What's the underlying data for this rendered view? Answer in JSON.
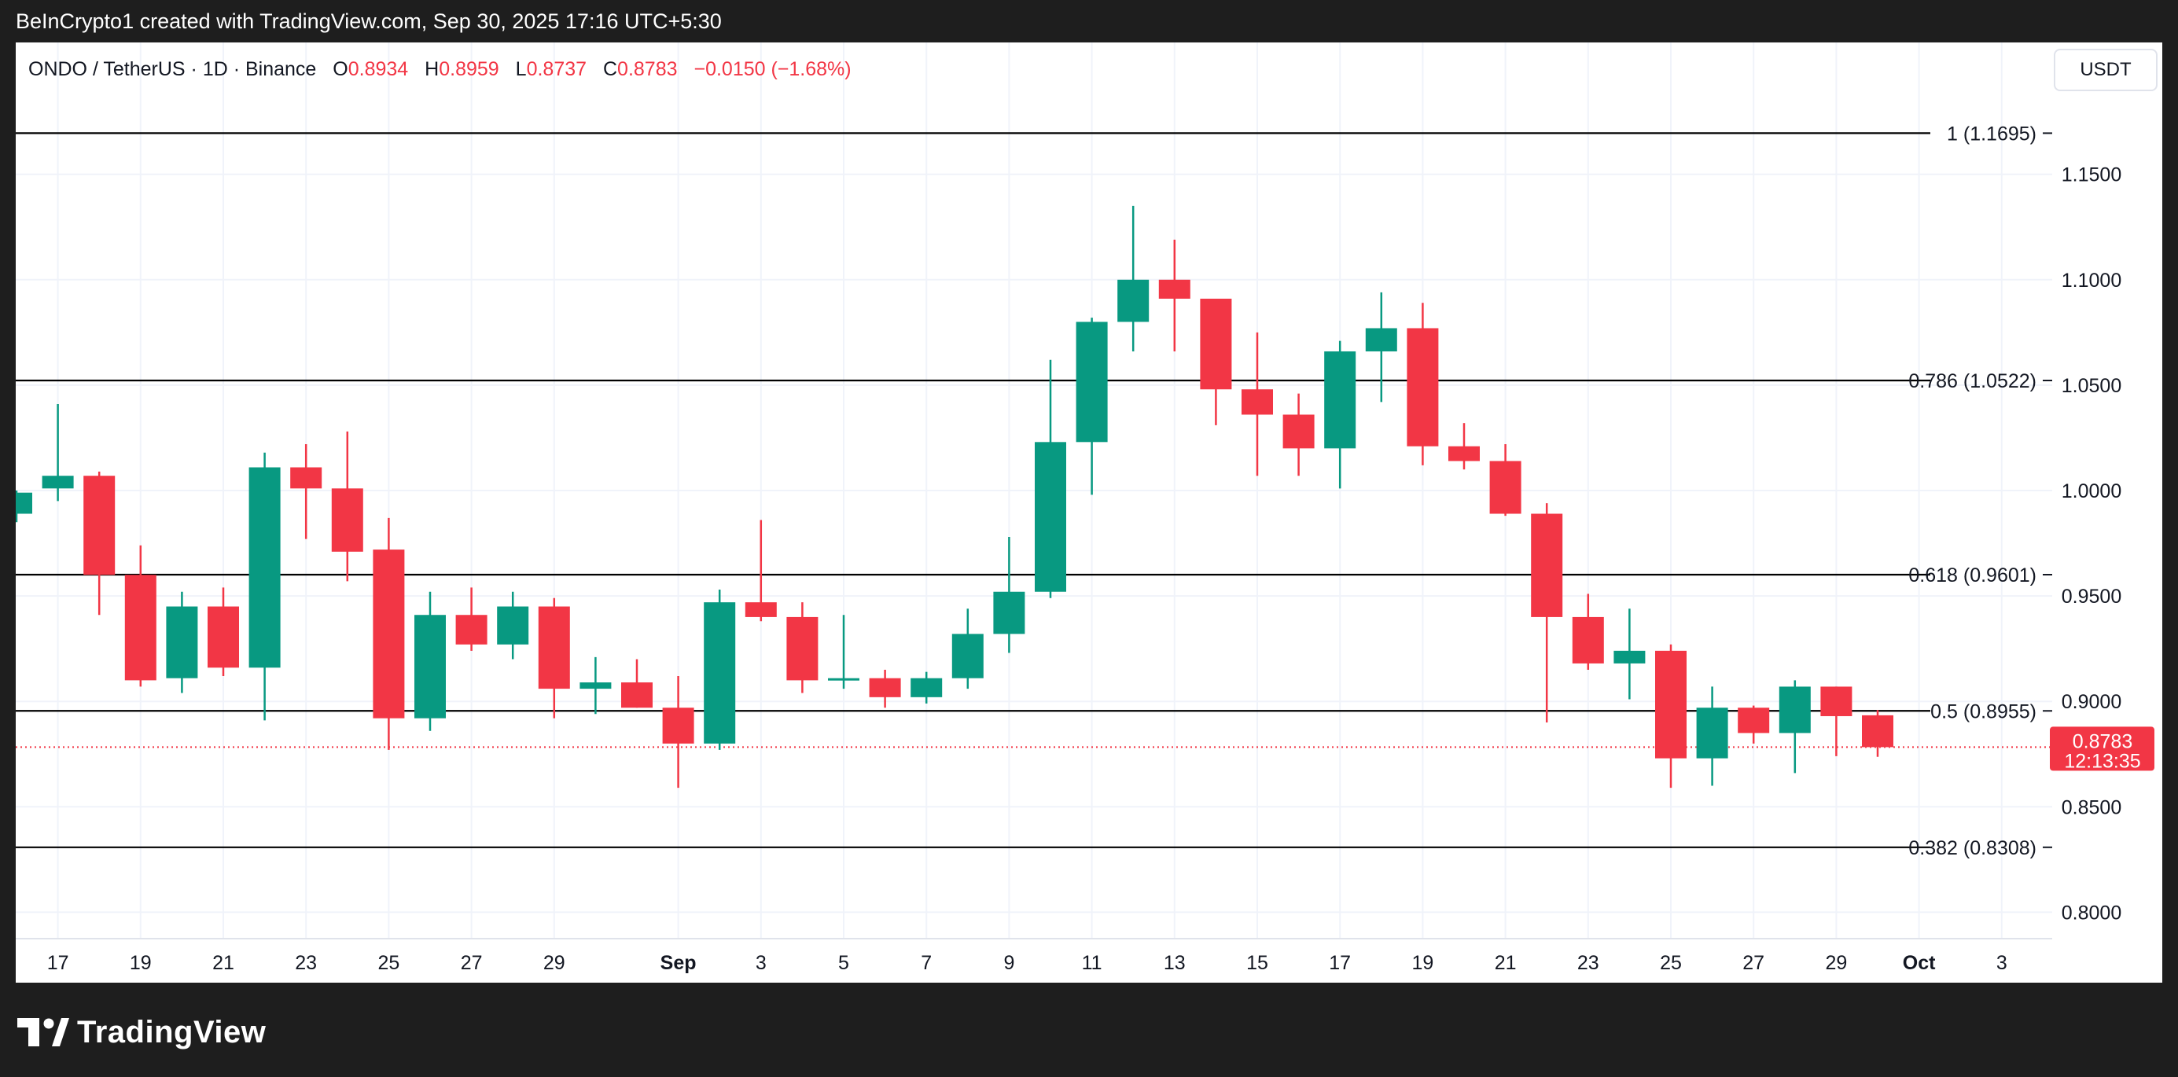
{
  "header": {
    "caption": "BeInCrypto1 created with TradingView.com, Sep 30, 2025 17:16 UTC+5:30"
  },
  "legend": {
    "symbol": "ONDO / TetherUS · 1D · Binance",
    "open_label": "O",
    "open": "0.8934",
    "high_label": "H",
    "high": "0.8959",
    "low_label": "L",
    "low": "0.8737",
    "close_label": "C",
    "close": "0.8783",
    "change": "−0.0150 (−1.68%)"
  },
  "currency": "USDT",
  "price_tag": {
    "price": "0.8783",
    "countdown": "12:13:35",
    "color": "#f23645"
  },
  "footer": {
    "brand": "TradingView"
  },
  "colors": {
    "up": "#089981",
    "down": "#f23645",
    "grid": "#f0f3fa",
    "level": "#000000"
  },
  "chart_data": {
    "type": "candlestick",
    "interval": "1D",
    "y_ticks": [
      "1.1500",
      "1.1000",
      "1.0500",
      "1.0000",
      "0.9500",
      "0.9000",
      "0.8500",
      "0.8000"
    ],
    "x_ticks": [
      "17",
      "19",
      "21",
      "23",
      "25",
      "27",
      "29",
      "Sep",
      "3",
      "5",
      "7",
      "9",
      "11",
      "13",
      "15",
      "17",
      "19",
      "21",
      "23",
      "25",
      "27",
      "29",
      "Oct",
      "3"
    ],
    "x_tick_days": [
      0,
      2,
      4,
      6,
      8,
      10,
      12,
      15,
      17,
      19,
      21,
      23,
      25,
      27,
      29,
      31,
      33,
      35,
      37,
      39,
      41,
      43,
      45,
      47
    ],
    "x_tick_bold": [
      false,
      false,
      false,
      false,
      false,
      false,
      false,
      true,
      false,
      false,
      false,
      false,
      false,
      false,
      false,
      false,
      false,
      false,
      false,
      false,
      false,
      false,
      true,
      false
    ],
    "fib_levels": [
      {
        "label": "1 (1.1695)",
        "value": 1.1695
      },
      {
        "label": "0.786 (1.0522)",
        "value": 1.0522
      },
      {
        "label": "0.618 (0.9601)",
        "value": 0.9601
      },
      {
        "label": "0.5 (0.8955)",
        "value": 0.8955
      },
      {
        "label": "0.382 (0.8308)",
        "value": 0.8308
      }
    ],
    "last_price": 0.8783,
    "candles": [
      {
        "date": "Aug 16",
        "o": 0.989,
        "h": 1.0,
        "l": 0.985,
        "c": 0.999
      },
      {
        "date": "Aug 17",
        "o": 1.001,
        "h": 1.041,
        "l": 0.995,
        "c": 1.007
      },
      {
        "date": "Aug 18",
        "o": 1.007,
        "h": 1.009,
        "l": 0.941,
        "c": 0.96
      },
      {
        "date": "Aug 19",
        "o": 0.96,
        "h": 0.974,
        "l": 0.907,
        "c": 0.91
      },
      {
        "date": "Aug 20",
        "o": 0.911,
        "h": 0.952,
        "l": 0.904,
        "c": 0.945
      },
      {
        "date": "Aug 21",
        "o": 0.945,
        "h": 0.954,
        "l": 0.912,
        "c": 0.916
      },
      {
        "date": "Aug 22",
        "o": 0.916,
        "h": 1.018,
        "l": 0.891,
        "c": 1.011
      },
      {
        "date": "Aug 23",
        "o": 1.011,
        "h": 1.022,
        "l": 0.977,
        "c": 1.001
      },
      {
        "date": "Aug 24",
        "o": 1.001,
        "h": 1.028,
        "l": 0.957,
        "c": 0.971
      },
      {
        "date": "Aug 25",
        "o": 0.972,
        "h": 0.987,
        "l": 0.877,
        "c": 0.892
      },
      {
        "date": "Aug 26",
        "o": 0.892,
        "h": 0.952,
        "l": 0.886,
        "c": 0.941
      },
      {
        "date": "Aug 27",
        "o": 0.941,
        "h": 0.954,
        "l": 0.924,
        "c": 0.927
      },
      {
        "date": "Aug 28",
        "o": 0.927,
        "h": 0.952,
        "l": 0.92,
        "c": 0.945
      },
      {
        "date": "Aug 29",
        "o": 0.945,
        "h": 0.949,
        "l": 0.892,
        "c": 0.906
      },
      {
        "date": "Aug 30",
        "o": 0.906,
        "h": 0.921,
        "l": 0.894,
        "c": 0.909
      },
      {
        "date": "Aug 31",
        "o": 0.909,
        "h": 0.92,
        "l": 0.897,
        "c": 0.897
      },
      {
        "date": "Sep 1",
        "o": 0.897,
        "h": 0.912,
        "l": 0.859,
        "c": 0.88
      },
      {
        "date": "Sep 2",
        "o": 0.88,
        "h": 0.953,
        "l": 0.877,
        "c": 0.947
      },
      {
        "date": "Sep 3",
        "o": 0.947,
        "h": 0.986,
        "l": 0.938,
        "c": 0.94
      },
      {
        "date": "Sep 4",
        "o": 0.94,
        "h": 0.947,
        "l": 0.904,
        "c": 0.91
      },
      {
        "date": "Sep 5",
        "o": 0.91,
        "h": 0.941,
        "l": 0.906,
        "c": 0.911
      },
      {
        "date": "Sep 6",
        "o": 0.911,
        "h": 0.915,
        "l": 0.897,
        "c": 0.902
      },
      {
        "date": "Sep 7",
        "o": 0.902,
        "h": 0.914,
        "l": 0.899,
        "c": 0.911
      },
      {
        "date": "Sep 8",
        "o": 0.911,
        "h": 0.944,
        "l": 0.906,
        "c": 0.932
      },
      {
        "date": "Sep 9",
        "o": 0.932,
        "h": 0.978,
        "l": 0.923,
        "c": 0.952
      },
      {
        "date": "Sep 10",
        "o": 0.952,
        "h": 1.062,
        "l": 0.949,
        "c": 1.023
      },
      {
        "date": "Sep 11",
        "o": 1.023,
        "h": 1.082,
        "l": 0.998,
        "c": 1.08
      },
      {
        "date": "Sep 12",
        "o": 1.08,
        "h": 1.135,
        "l": 1.066,
        "c": 1.1
      },
      {
        "date": "Sep 13",
        "o": 1.1,
        "h": 1.119,
        "l": 1.066,
        "c": 1.091
      },
      {
        "date": "Sep 14",
        "o": 1.091,
        "h": 1.091,
        "l": 1.031,
        "c": 1.048
      },
      {
        "date": "Sep 15",
        "o": 1.048,
        "h": 1.075,
        "l": 1.007,
        "c": 1.036
      },
      {
        "date": "Sep 16",
        "o": 1.036,
        "h": 1.046,
        "l": 1.007,
        "c": 1.02
      },
      {
        "date": "Sep 17",
        "o": 1.02,
        "h": 1.071,
        "l": 1.001,
        "c": 1.066
      },
      {
        "date": "Sep 18",
        "o": 1.066,
        "h": 1.094,
        "l": 1.042,
        "c": 1.077
      },
      {
        "date": "Sep 19",
        "o": 1.077,
        "h": 1.089,
        "l": 1.012,
        "c": 1.021
      },
      {
        "date": "Sep 20",
        "o": 1.021,
        "h": 1.032,
        "l": 1.01,
        "c": 1.014
      },
      {
        "date": "Sep 21",
        "o": 1.014,
        "h": 1.022,
        "l": 0.988,
        "c": 0.989
      },
      {
        "date": "Sep 22",
        "o": 0.989,
        "h": 0.994,
        "l": 0.89,
        "c": 0.94
      },
      {
        "date": "Sep 23",
        "o": 0.94,
        "h": 0.951,
        "l": 0.915,
        "c": 0.918
      },
      {
        "date": "Sep 24",
        "o": 0.918,
        "h": 0.944,
        "l": 0.901,
        "c": 0.924
      },
      {
        "date": "Sep 25",
        "o": 0.924,
        "h": 0.927,
        "l": 0.859,
        "c": 0.873
      },
      {
        "date": "Sep 26",
        "o": 0.873,
        "h": 0.907,
        "l": 0.86,
        "c": 0.897
      },
      {
        "date": "Sep 27",
        "o": 0.897,
        "h": 0.898,
        "l": 0.88,
        "c": 0.885
      },
      {
        "date": "Sep 28",
        "o": 0.885,
        "h": 0.91,
        "l": 0.866,
        "c": 0.907
      },
      {
        "date": "Sep 29",
        "o": 0.907,
        "h": 0.907,
        "l": 0.874,
        "c": 0.893
      },
      {
        "date": "Sep 30",
        "o": 0.8934,
        "h": 0.8959,
        "l": 0.8737,
        "c": 0.8783
      }
    ]
  }
}
